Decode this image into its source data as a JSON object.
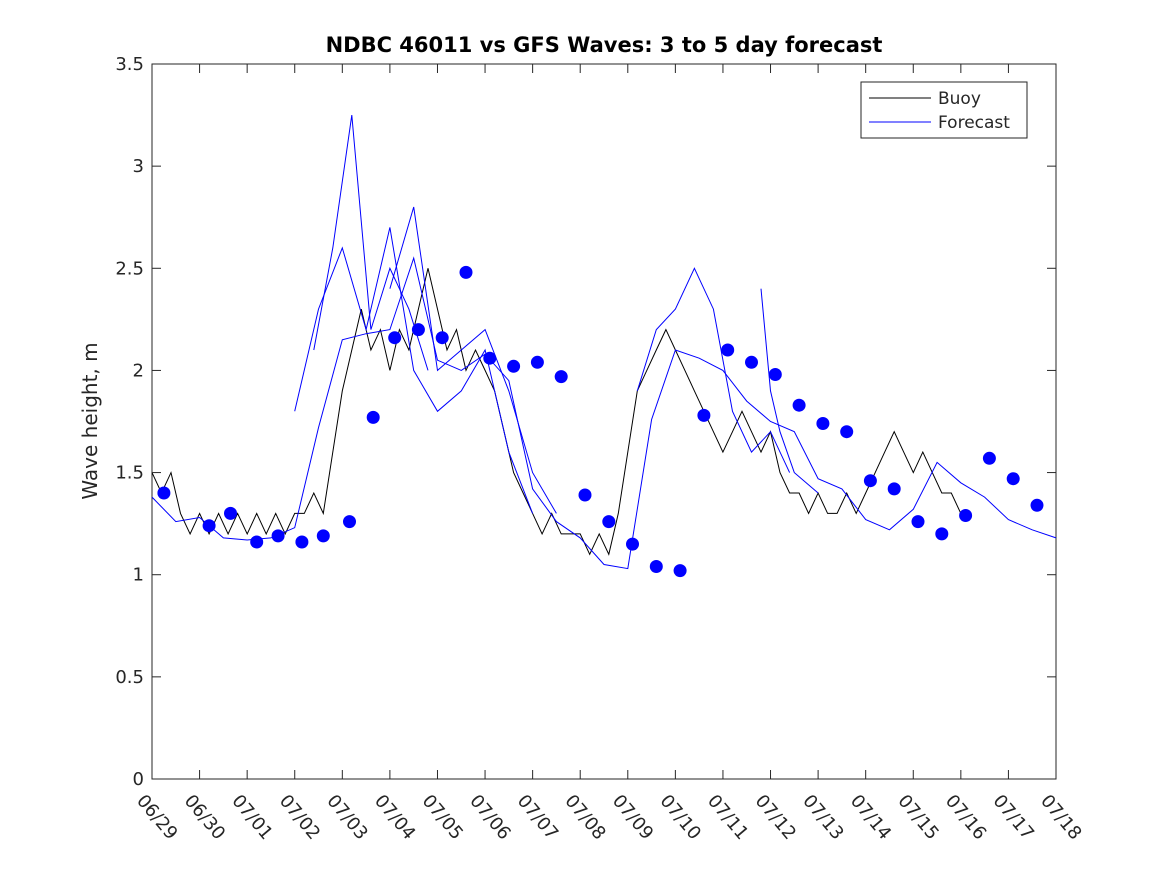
{
  "chart_data": {
    "type": "line",
    "title": "NDBC 46011 vs GFS Waves: 3 to 5 day forecast",
    "xlabel": "",
    "ylabel": "Wave height, m",
    "x_tick_labels": [
      "06/29",
      "06/30",
      "07/01",
      "07/02",
      "07/03",
      "07/04",
      "07/05",
      "07/06",
      "07/07",
      "07/08",
      "07/09",
      "07/10",
      "07/11",
      "07/12",
      "07/13",
      "07/14",
      "07/15",
      "07/16",
      "07/17",
      "07/18"
    ],
    "xlim": [
      0,
      19
    ],
    "ylim": [
      0,
      3.5
    ],
    "y_ticks": [
      "0",
      "0.5",
      "1",
      "1.5",
      "2",
      "2.5",
      "3",
      "3.5"
    ],
    "grid": false,
    "legend": {
      "placement": "top-right",
      "entries": [
        "Buoy",
        "Forecast"
      ]
    },
    "colors": {
      "buoy": "#000000",
      "forecast": "#0000ff",
      "markers": "#0000ff"
    },
    "series": [
      {
        "name": "Buoy",
        "x": [
          0,
          0.2,
          0.4,
          0.6,
          0.8,
          1.0,
          1.2,
          1.4,
          1.6,
          1.8,
          2.0,
          2.2,
          2.4,
          2.6,
          2.8,
          3.0,
          3.2,
          3.4,
          3.6,
          3.8,
          4.0,
          4.2,
          4.4,
          4.6,
          4.8,
          5.0,
          5.2,
          5.4,
          5.6,
          5.8,
          6.0,
          6.2,
          6.4,
          6.6,
          6.8,
          7.0,
          7.2,
          7.4,
          7.6,
          7.8,
          8.0,
          8.2,
          8.4,
          8.6,
          8.8,
          9.0,
          9.2,
          9.4,
          9.6,
          9.8,
          10.0,
          10.2,
          10.4,
          10.6,
          10.8,
          11.0,
          11.2,
          11.4,
          11.6,
          11.8,
          12.0,
          12.2,
          12.4,
          12.6,
          12.8,
          13.0,
          13.2,
          13.4,
          13.6,
          13.8,
          14.0,
          14.2,
          14.4,
          14.6,
          14.8,
          15.0,
          15.2,
          15.4,
          15.6,
          15.8,
          16.0,
          16.2,
          16.4,
          16.6,
          16.8,
          17.0,
          17.2
        ],
        "y": [
          1.5,
          1.4,
          1.5,
          1.3,
          1.2,
          1.3,
          1.2,
          1.3,
          1.2,
          1.3,
          1.2,
          1.3,
          1.2,
          1.3,
          1.2,
          1.3,
          1.3,
          1.4,
          1.3,
          1.6,
          1.9,
          2.1,
          2.3,
          2.1,
          2.2,
          2.0,
          2.2,
          2.1,
          2.3,
          2.5,
          2.3,
          2.1,
          2.2,
          2.0,
          2.1,
          2.0,
          1.9,
          1.7,
          1.5,
          1.4,
          1.3,
          1.2,
          1.3,
          1.2,
          1.2,
          1.2,
          1.1,
          1.2,
          1.1,
          1.3,
          1.6,
          1.9,
          2.0,
          2.1,
          2.2,
          2.1,
          2.0,
          1.9,
          1.8,
          1.7,
          1.6,
          1.7,
          1.8,
          1.7,
          1.6,
          1.7,
          1.5,
          1.4,
          1.4,
          1.3,
          1.4,
          1.3,
          1.3,
          1.4,
          1.3,
          1.4,
          1.5,
          1.6,
          1.7,
          1.6,
          1.5,
          1.6,
          1.5,
          1.4,
          1.4,
          1.3,
          1.3
        ]
      },
      {
        "name": "Forecast",
        "x": [
          0,
          0.5,
          1.0,
          1.5,
          2.0,
          2.5,
          3.0,
          3.5,
          4.0,
          4.5,
          5.0,
          5.5,
          6.0,
          6.5,
          7.0,
          7.5,
          8.0,
          8.5,
          9.0,
          9.5,
          10.0,
          10.5,
          11.0,
          11.5,
          12.0,
          12.5,
          13.0,
          13.5,
          14.0,
          14.5,
          15.0,
          15.5,
          16.0,
          16.5,
          17.0,
          17.5,
          18.0,
          18.5,
          19.0
        ],
        "y": [
          1.38,
          1.26,
          1.28,
          1.18,
          1.17,
          1.18,
          1.23,
          1.72,
          2.15,
          2.18,
          2.2,
          2.55,
          2.05,
          2.0,
          2.08,
          1.95,
          1.42,
          1.26,
          1.18,
          1.05,
          1.03,
          1.76,
          2.1,
          2.06,
          2.0,
          1.85,
          1.75,
          1.7,
          1.47,
          1.42,
          1.27,
          1.22,
          1.32,
          1.55,
          1.45,
          1.38,
          1.27,
          1.22,
          1.18
        ]
      },
      {
        "name": "",
        "x": [
          3.0,
          3.5,
          4.0,
          4.5,
          5.0,
          5.5,
          6.0,
          6.5,
          7.0,
          7.5,
          8.0
        ],
        "y": [
          1.8,
          2.3,
          2.6,
          2.2,
          2.7,
          2.0,
          1.8,
          1.9,
          2.1,
          1.6,
          1.3
        ]
      },
      {
        "name": "",
        "x": [
          3.4,
          3.8,
          4.2,
          4.6,
          5.0,
          5.4,
          5.8
        ],
        "y": [
          2.1,
          2.6,
          3.25,
          2.2,
          2.5,
          2.3,
          2.0
        ]
      },
      {
        "name": "",
        "x": [
          5.0,
          5.5,
          6.0,
          6.5,
          7.0,
          7.5,
          8.0,
          8.5
        ],
        "y": [
          2.4,
          2.8,
          2.0,
          2.1,
          2.2,
          1.9,
          1.5,
          1.3
        ]
      },
      {
        "name": "",
        "x": [
          10.2,
          10.6,
          11.0,
          11.4,
          11.8,
          12.2,
          12.6,
          13.0,
          13.4
        ],
        "y": [
          1.9,
          2.2,
          2.3,
          2.5,
          2.3,
          1.8,
          1.6,
          1.7,
          1.5
        ]
      },
      {
        "name": "",
        "x": [
          12.8,
          13.0,
          13.2,
          13.5,
          14.0
        ],
        "y": [
          2.4,
          1.9,
          1.7,
          1.5,
          1.4
        ]
      }
    ],
    "markers": {
      "x": [
        0.25,
        1.2,
        1.65,
        2.2,
        2.65,
        3.15,
        3.6,
        4.15,
        4.65,
        5.1,
        5.6,
        6.1,
        6.6,
        7.1,
        7.6,
        8.1,
        8.6,
        9.1,
        9.6,
        10.1,
        10.6,
        11.1,
        11.6,
        12.1,
        12.6,
        13.1,
        13.6,
        14.1,
        14.6,
        15.1,
        15.6,
        16.1,
        16.6,
        17.1,
        17.6,
        18.1,
        18.6
      ],
      "y": [
        1.4,
        1.24,
        1.3,
        1.16,
        1.19,
        1.16,
        1.19,
        1.26,
        1.77,
        2.16,
        2.2,
        2.16,
        2.48,
        2.06,
        2.02,
        2.04,
        1.97,
        1.39,
        1.26,
        1.15,
        1.04,
        1.02,
        1.78,
        2.1,
        2.04,
        1.98,
        1.83,
        1.74,
        1.7,
        1.46,
        1.42,
        1.26,
        1.2,
        1.29,
        1.57,
        1.47,
        1.34
      ]
    }
  }
}
